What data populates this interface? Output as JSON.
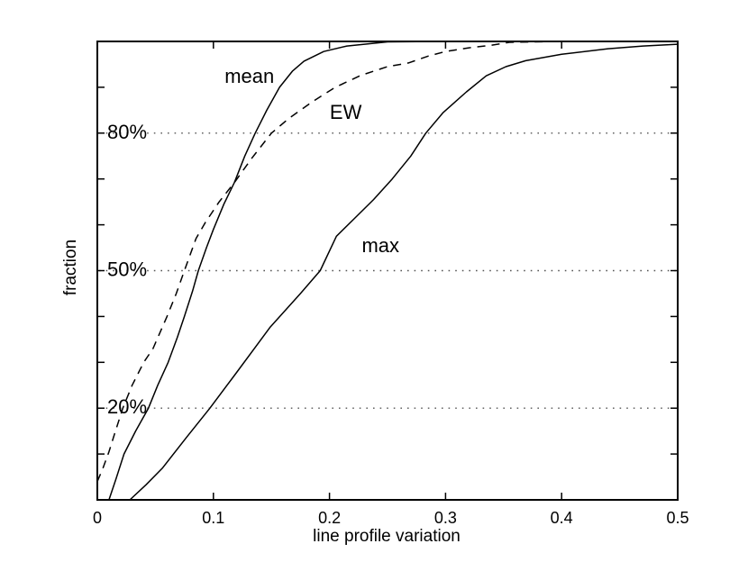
{
  "page": {
    "background_color": "#ffffff"
  },
  "chart_data": {
    "type": "line",
    "title": "",
    "xlabel": "line profile variation",
    "ylabel": "fraction",
    "xlim": [
      0,
      0.5
    ],
    "ylim": [
      0,
      1
    ],
    "x_ticks": [
      {
        "value": 0.0,
        "label": "0"
      },
      {
        "value": 0.1,
        "label": "0.1"
      },
      {
        "value": 0.2,
        "label": "0.2"
      },
      {
        "value": 0.3,
        "label": "0.3"
      },
      {
        "value": 0.4,
        "label": "0.4"
      },
      {
        "value": 0.5,
        "label": "0.5"
      }
    ],
    "y_minor_ticks": [
      0.1,
      0.2,
      0.3,
      0.4,
      0.5,
      0.6,
      0.7,
      0.8,
      0.9
    ],
    "gridlines": [
      {
        "value": 0.2,
        "label": "20%"
      },
      {
        "value": 0.5,
        "label": "50%"
      },
      {
        "value": 0.8,
        "label": "80%"
      }
    ],
    "grid_style": "dotted-horizontal",
    "legend_position": "inline-labels",
    "axis_color": "#000000",
    "grid_dot_color": "#555555",
    "background_color": "#ffffff",
    "series": [
      {
        "name": "mean",
        "line_style": "solid",
        "color": "#000000",
        "points": [
          [
            0.01,
            0.0
          ],
          [
            0.016,
            0.045
          ],
          [
            0.023,
            0.1
          ],
          [
            0.033,
            0.15
          ],
          [
            0.044,
            0.2
          ],
          [
            0.052,
            0.25
          ],
          [
            0.061,
            0.3
          ],
          [
            0.069,
            0.355
          ],
          [
            0.075,
            0.4
          ],
          [
            0.082,
            0.455
          ],
          [
            0.087,
            0.5
          ],
          [
            0.094,
            0.55
          ],
          [
            0.1,
            0.59
          ],
          [
            0.109,
            0.645
          ],
          [
            0.118,
            0.692
          ],
          [
            0.127,
            0.75
          ],
          [
            0.136,
            0.8
          ],
          [
            0.146,
            0.85
          ],
          [
            0.157,
            0.9
          ],
          [
            0.168,
            0.935
          ],
          [
            0.178,
            0.957
          ],
          [
            0.195,
            0.978
          ],
          [
            0.215,
            0.99
          ],
          [
            0.25,
            0.999
          ],
          [
            0.3,
            1.0
          ],
          [
            0.5,
            1.0
          ]
        ]
      },
      {
        "name": "EW",
        "line_style": "dashed",
        "color": "#000000",
        "points": [
          [
            0.0,
            0.04
          ],
          [
            0.005,
            0.07
          ],
          [
            0.01,
            0.105
          ],
          [
            0.015,
            0.145
          ],
          [
            0.022,
            0.2
          ],
          [
            0.03,
            0.25
          ],
          [
            0.04,
            0.3
          ],
          [
            0.048,
            0.33
          ],
          [
            0.06,
            0.4
          ],
          [
            0.068,
            0.45
          ],
          [
            0.075,
            0.5
          ],
          [
            0.085,
            0.57
          ],
          [
            0.093,
            0.605
          ],
          [
            0.105,
            0.65
          ],
          [
            0.118,
            0.692
          ],
          [
            0.133,
            0.745
          ],
          [
            0.15,
            0.8
          ],
          [
            0.165,
            0.832
          ],
          [
            0.185,
            0.868
          ],
          [
            0.205,
            0.9
          ],
          [
            0.227,
            0.926
          ],
          [
            0.25,
            0.945
          ],
          [
            0.268,
            0.953
          ],
          [
            0.285,
            0.968
          ],
          [
            0.3,
            0.978
          ],
          [
            0.32,
            0.986
          ],
          [
            0.34,
            0.992
          ],
          [
            0.355,
            0.998
          ],
          [
            0.4,
            1.0
          ],
          [
            0.5,
            1.0
          ]
        ]
      },
      {
        "name": "max",
        "line_style": "solid",
        "color": "#000000",
        "points": [
          [
            0.028,
            0.0
          ],
          [
            0.042,
            0.033
          ],
          [
            0.056,
            0.069
          ],
          [
            0.077,
            0.137
          ],
          [
            0.097,
            0.2
          ],
          [
            0.12,
            0.278
          ],
          [
            0.149,
            0.377
          ],
          [
            0.175,
            0.45
          ],
          [
            0.192,
            0.5
          ],
          [
            0.206,
            0.575
          ],
          [
            0.222,
            0.615
          ],
          [
            0.238,
            0.655
          ],
          [
            0.254,
            0.7
          ],
          [
            0.27,
            0.75
          ],
          [
            0.283,
            0.8
          ],
          [
            0.298,
            0.845
          ],
          [
            0.318,
            0.89
          ],
          [
            0.335,
            0.925
          ],
          [
            0.352,
            0.945
          ],
          [
            0.369,
            0.958
          ],
          [
            0.4,
            0.972
          ],
          [
            0.44,
            0.984
          ],
          [
            0.47,
            0.99
          ],
          [
            0.5,
            0.994
          ]
        ]
      }
    ],
    "annotations": [
      {
        "text": "mean",
        "x": 0.131,
        "y": 0.923
      },
      {
        "text": "EW",
        "x": 0.214,
        "y": 0.845
      },
      {
        "text": "max",
        "x": 0.244,
        "y": 0.554
      }
    ]
  }
}
